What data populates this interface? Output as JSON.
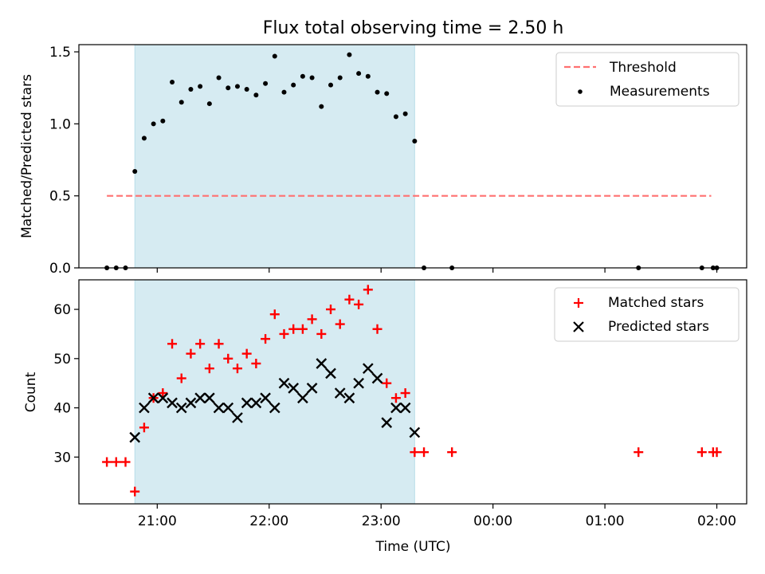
{
  "chart_data": {
    "title": "Flux total observing time = 2.50 h",
    "xlabel": "Time (UTC)",
    "x_tick_labels": [
      "21:00",
      "22:00",
      "23:00",
      "00:00",
      "01:00",
      "02:00"
    ],
    "x_ticks": [
      "21:00",
      "22:00",
      "23:00",
      "00:00",
      "01:00",
      "02:00"
    ],
    "xlim": [
      "20:18",
      "02:16"
    ],
    "shaded_interval": {
      "start": "20:48",
      "end": "23:18",
      "color": "#add8e6"
    },
    "panels": [
      {
        "type": "scatter",
        "ylabel": "Matched/Predicted stars",
        "ylim": [
          0,
          1.55
        ],
        "y_ticks": [
          0,
          0.5,
          1.0,
          1.5
        ],
        "y_tick_labels": [
          "0.0",
          "0.5",
          "1.0",
          "1.5"
        ],
        "legend_position": "top-right",
        "series": [
          {
            "name": "Threshold",
            "kind": "line",
            "style": "dashed",
            "color": "#ff7070",
            "x": [
              "20:33",
              "01:57"
            ],
            "y": [
              0.5,
              0.5
            ]
          },
          {
            "name": "Measurements",
            "kind": "scatter",
            "marker": "dot",
            "color": "#000000",
            "x": [
              "20:33",
              "20:38",
              "20:43",
              "20:48",
              "20:53",
              "20:58",
              "21:03",
              "21:08",
              "21:13",
              "21:18",
              "21:23",
              "21:28",
              "21:33",
              "21:38",
              "21:43",
              "21:48",
              "21:53",
              "21:58",
              "22:03",
              "22:08",
              "22:13",
              "22:18",
              "22:23",
              "22:28",
              "22:33",
              "22:38",
              "22:43",
              "22:48",
              "22:53",
              "22:58",
              "23:03",
              "23:08",
              "23:13",
              "23:18",
              "23:23",
              "23:38",
              "01:18",
              "01:52",
              "01:58",
              "02:00"
            ],
            "y": [
              0,
              0,
              0,
              0.67,
              0.9,
              1.0,
              1.02,
              1.29,
              1.15,
              1.24,
              1.26,
              1.14,
              1.32,
              1.25,
              1.26,
              1.24,
              1.2,
              1.28,
              1.47,
              1.22,
              1.27,
              1.33,
              1.32,
              1.12,
              1.27,
              1.32,
              1.48,
              1.35,
              1.33,
              1.22,
              1.21,
              1.05,
              1.07,
              0.88,
              0,
              0,
              0,
              0,
              0,
              0
            ]
          }
        ]
      },
      {
        "type": "scatter",
        "ylabel": "Count",
        "ylim": [
          20.5,
          66
        ],
        "y_ticks": [
          30,
          40,
          50,
          60
        ],
        "y_tick_labels": [
          "30",
          "40",
          "50",
          "60"
        ],
        "legend_position": "top-right",
        "series": [
          {
            "name": "Matched stars",
            "kind": "scatter",
            "marker": "plus",
            "color": "#ff0000",
            "x": [
              "20:33",
              "20:38",
              "20:43",
              "20:48",
              "20:53",
              "20:58",
              "21:03",
              "21:08",
              "21:13",
              "21:18",
              "21:23",
              "21:28",
              "21:33",
              "21:38",
              "21:43",
              "21:48",
              "21:53",
              "21:58",
              "22:03",
              "22:08",
              "22:13",
              "22:18",
              "22:23",
              "22:28",
              "22:33",
              "22:38",
              "22:43",
              "22:48",
              "22:53",
              "22:58",
              "23:03",
              "23:08",
              "23:13",
              "23:18",
              "23:23",
              "23:38",
              "01:18",
              "01:52",
              "01:58",
              "02:00"
            ],
            "y": [
              29,
              29,
              29,
              23,
              36,
              42,
              43,
              53,
              46,
              51,
              53,
              48,
              53,
              50,
              48,
              51,
              49,
              54,
              59,
              55,
              56,
              56,
              58,
              55,
              60,
              57,
              62,
              61,
              64,
              56,
              45,
              42,
              43,
              31,
              31,
              31,
              31,
              31,
              31,
              31
            ]
          },
          {
            "name": "Predicted stars",
            "kind": "scatter",
            "marker": "x",
            "color": "#000000",
            "x": [
              "20:48",
              "20:53",
              "20:58",
              "21:03",
              "21:08",
              "21:13",
              "21:18",
              "21:23",
              "21:28",
              "21:33",
              "21:38",
              "21:43",
              "21:48",
              "21:53",
              "21:58",
              "22:03",
              "22:08",
              "22:13",
              "22:18",
              "22:23",
              "22:28",
              "22:33",
              "22:38",
              "22:43",
              "22:48",
              "22:53",
              "22:58",
              "23:03",
              "23:08",
              "23:13",
              "23:18"
            ],
            "y": [
              34,
              40,
              42,
              42,
              41,
              40,
              41,
              42,
              42,
              40,
              40,
              38,
              41,
              41,
              42,
              40,
              45,
              44,
              42,
              44,
              49,
              47,
              43,
              42,
              45,
              48,
              46,
              37,
              40,
              40,
              35
            ]
          }
        ]
      }
    ]
  }
}
